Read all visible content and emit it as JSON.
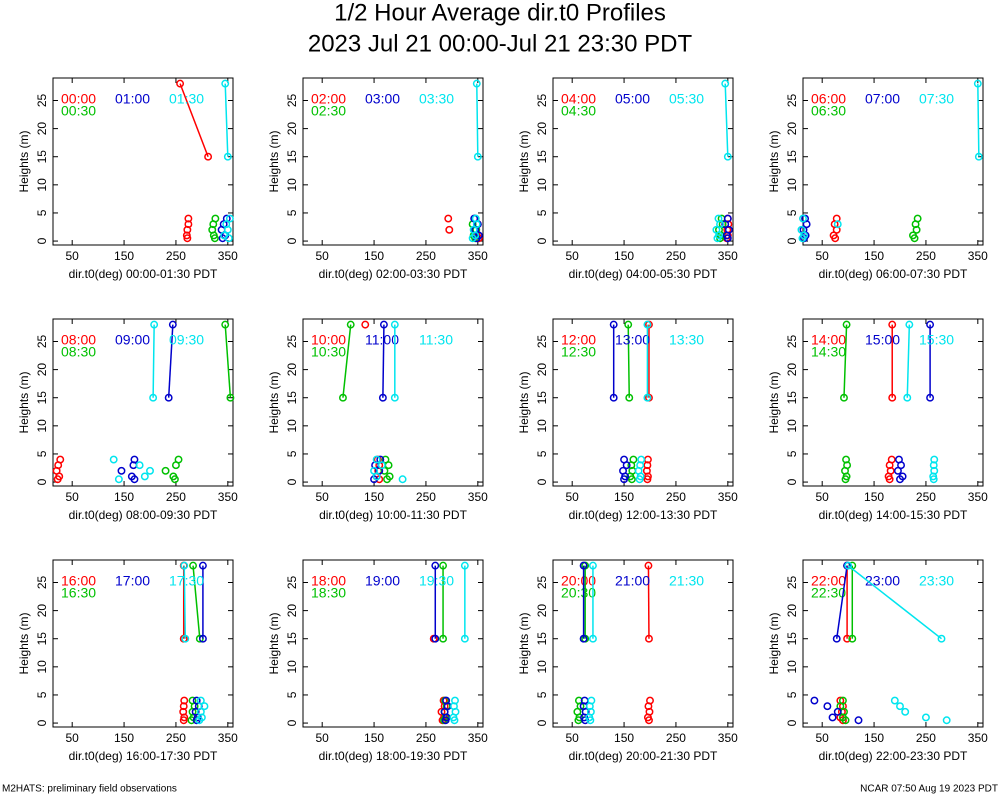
{
  "title": "1/2 Hour Average dir.t0 Profiles",
  "subtitle": "2023 Jul 21 00:00-Jul 21 23:30 PDT",
  "footer_left": "M2HATS: preliminary field observations",
  "footer_right": "NCAR 07:50 Aug 19 2023 PDT",
  "chart_data": [
    {
      "type": "scatter",
      "xlabel": "dir.t0(deg) 00:00-01:30 PDT",
      "ylabel": "Heights (m)",
      "xlim": [
        13,
        360
      ],
      "ylim": [
        -0.7,
        29
      ],
      "xticks": [
        50,
        150,
        250,
        350
      ],
      "yticks": [
        0,
        5,
        10,
        15,
        20,
        25
      ],
      "y": [
        0.5,
        1,
        2,
        3,
        4,
        15,
        28
      ],
      "series": [
        {
          "name": "00:00",
          "color": "#ff0000",
          "x": [
            272,
            271,
            272,
            274,
            274,
            312,
            258
          ]
        },
        {
          "name": "00:30",
          "color": "#00c000",
          "x": [
            325,
            323,
            320,
            322,
            326,
            null,
            null
          ]
        },
        {
          "name": "01:00",
          "color": "#0000cc",
          "x": [
            340,
            345,
            338,
            342,
            348,
            null,
            null
          ]
        },
        {
          "name": "01:30",
          "color": "#00e5ee",
          "x": [
            352,
            343,
            350,
            347,
            354,
            350,
            345
          ]
        }
      ]
    },
    {
      "type": "scatter",
      "xlabel": "dir.t0(deg) 02:00-03:30 PDT",
      "ylabel": "Heights (m)",
      "xlim": [
        13,
        360
      ],
      "ylim": [
        -0.7,
        29
      ],
      "xticks": [
        50,
        150,
        250,
        350
      ],
      "yticks": [
        0,
        5,
        10,
        15,
        20,
        25
      ],
      "y": [
        0.5,
        1,
        2,
        3,
        4,
        15,
        28
      ],
      "series": [
        {
          "name": "02:00",
          "color": "#ff0000",
          "x": [
            352,
            348,
            295,
            350,
            293,
            null,
            null
          ]
        },
        {
          "name": "02:30",
          "color": "#00c000",
          "x": [
            345,
            342,
            347,
            340,
            345,
            null,
            null
          ]
        },
        {
          "name": "03:00",
          "color": "#0000cc",
          "x": [
            348,
            352,
            345,
            350,
            343,
            null,
            null
          ]
        },
        {
          "name": "03:30",
          "color": "#00e5ee",
          "x": [
            340,
            345,
            342,
            348,
            346,
            350,
            348
          ]
        }
      ]
    },
    {
      "type": "scatter",
      "xlabel": "dir.t0(deg) 04:00-05:30 PDT",
      "ylabel": "Heights (m)",
      "xlim": [
        13,
        360
      ],
      "ylim": [
        -0.7,
        29
      ],
      "xticks": [
        50,
        150,
        250,
        350
      ],
      "yticks": [
        0,
        5,
        10,
        15,
        20,
        25
      ],
      "y": [
        0.5,
        1,
        2,
        3,
        4,
        15,
        28
      ],
      "series": [
        {
          "name": "04:00",
          "color": "#ff0000",
          "x": [
            348,
            350,
            349,
            351,
            350,
            null,
            null
          ]
        },
        {
          "name": "04:30",
          "color": "#00c000",
          "x": [
            335,
            337,
            333,
            340,
            338,
            null,
            null
          ]
        },
        {
          "name": "05:00",
          "color": "#0000cc",
          "x": [
            350,
            348,
            352,
            345,
            350,
            null,
            null
          ]
        },
        {
          "name": "05:30",
          "color": "#00e5ee",
          "x": [
            330,
            333,
            328,
            335,
            332,
            350,
            345
          ]
        }
      ]
    },
    {
      "type": "scatter",
      "xlabel": "dir.t0(deg) 06:00-07:30 PDT",
      "ylabel": "Heights (m)",
      "xlim": [
        13,
        360
      ],
      "ylim": [
        -0.7,
        29
      ],
      "xticks": [
        50,
        150,
        250,
        350
      ],
      "yticks": [
        0,
        5,
        10,
        15,
        20,
        25
      ],
      "y": [
        0.5,
        1,
        2,
        3,
        4,
        15,
        28
      ],
      "series": [
        {
          "name": "06:00",
          "color": "#ff0000",
          "x": [
            75,
            72,
            78,
            74,
            78,
            null,
            null
          ]
        },
        {
          "name": "06:30",
          "color": "#00c000",
          "x": [
            228,
            225,
            232,
            230,
            234,
            null,
            null
          ]
        },
        {
          "name": "07:00",
          "color": "#0000cc",
          "x": [
            15,
            18,
            14,
            20,
            17,
            null,
            null
          ]
        },
        {
          "name": "07:30",
          "color": "#00e5ee",
          "x": [
            12,
            15,
            10,
            80,
            13,
            352,
            350
          ]
        }
      ]
    },
    {
      "type": "scatter",
      "xlabel": "dir.t0(deg) 08:00-09:30 PDT",
      "ylabel": "Heights (m)",
      "xlim": [
        13,
        360
      ],
      "ylim": [
        -0.7,
        29
      ],
      "xticks": [
        50,
        150,
        250,
        350
      ],
      "yticks": [
        0,
        5,
        10,
        15,
        20,
        25
      ],
      "y": [
        0.5,
        1,
        2,
        3,
        4,
        15,
        28
      ],
      "series": [
        {
          "name": "08:00",
          "color": "#ff0000",
          "x": [
            22,
            25,
            20,
            23,
            27,
            null,
            null
          ]
        },
        {
          "name": "08:30",
          "color": "#00c000",
          "x": [
            248,
            245,
            230,
            250,
            255,
            355,
            345
          ]
        },
        {
          "name": "09:00",
          "color": "#0000cc",
          "x": [
            170,
            165,
            145,
            168,
            170,
            236,
            244
          ]
        },
        {
          "name": "09:30",
          "color": "#00e5ee",
          "x": [
            140,
            190,
            200,
            180,
            130,
            206,
            208
          ]
        }
      ]
    },
    {
      "type": "scatter",
      "xlabel": "dir.t0(deg) 10:00-11:30 PDT",
      "ylabel": "Heights (m)",
      "xlim": [
        13,
        360
      ],
      "ylim": [
        -0.7,
        29
      ],
      "xticks": [
        50,
        150,
        250,
        350
      ],
      "yticks": [
        0,
        5,
        10,
        15,
        20,
        25
      ],
      "y": [
        0.5,
        1,
        2,
        3,
        4,
        15,
        28
      ],
      "series": [
        {
          "name": "10:00",
          "color": "#ff0000",
          "x": [
            160,
            155,
            158,
            160,
            157,
            null,
            133
          ]
        },
        {
          "name": "10:30",
          "color": "#00c000",
          "x": [
            175,
            180,
            170,
            178,
            172,
            90,
            105
          ]
        },
        {
          "name": "11:00",
          "color": "#0000cc",
          "x": [
            150,
            155,
            160,
            152,
            162,
            167,
            169
          ]
        },
        {
          "name": "11:30",
          "color": "#00e5ee",
          "x": [
            205,
            155,
            150,
            165,
            155,
            190,
            190
          ]
        }
      ]
    },
    {
      "type": "scatter",
      "xlabel": "dir.t0(deg) 12:00-13:30 PDT",
      "ylabel": "Heights (m)",
      "xlim": [
        13,
        360
      ],
      "ylim": [
        -0.7,
        29
      ],
      "xticks": [
        50,
        150,
        250,
        350
      ],
      "yticks": [
        0,
        5,
        10,
        15,
        20,
        25
      ],
      "y": [
        0.5,
        1,
        2,
        3,
        4,
        15,
        28
      ],
      "series": [
        {
          "name": "12:00",
          "color": "#ff0000",
          "x": [
            195,
            196,
            194,
            195,
            196,
            198,
            198
          ]
        },
        {
          "name": "12:30",
          "color": "#00c000",
          "x": [
            165,
            162,
            166,
            164,
            168,
            160,
            158
          ]
        },
        {
          "name": "13:00",
          "color": "#0000cc",
          "x": [
            150,
            152,
            148,
            155,
            150,
            130,
            130
          ]
        },
        {
          "name": "13:30",
          "color": "#00e5ee",
          "x": [
            180,
            182,
            178,
            181,
            183,
            195,
            195
          ]
        }
      ]
    },
    {
      "type": "scatter",
      "xlabel": "dir.t0(deg) 14:00-15:30 PDT",
      "ylabel": "Heights (m)",
      "xlim": [
        13,
        360
      ],
      "ylim": [
        -0.7,
        29
      ],
      "xticks": [
        50,
        150,
        250,
        350
      ],
      "yticks": [
        0,
        5,
        10,
        15,
        20,
        25
      ],
      "y": [
        0.5,
        1,
        2,
        3,
        4,
        15,
        28
      ],
      "series": [
        {
          "name": "14:00",
          "color": "#ff0000",
          "x": [
            180,
            178,
            182,
            180,
            184,
            185,
            185
          ]
        },
        {
          "name": "14:30",
          "color": "#00c000",
          "x": [
            95,
            97,
            94,
            98,
            96,
            92,
            97
          ]
        },
        {
          "name": "15:00",
          "color": "#0000cc",
          "x": [
            200,
            205,
            196,
            202,
            198,
            258,
            258
          ]
        },
        {
          "name": "15:30",
          "color": "#00e5ee",
          "x": [
            265,
            264,
            266,
            265,
            266,
            214,
            218
          ]
        }
      ]
    },
    {
      "type": "scatter",
      "xlabel": "dir.t0(deg) 16:00-17:30 PDT",
      "ylabel": "Heights (m)",
      "xlim": [
        13,
        360
      ],
      "ylim": [
        -0.7,
        29
      ],
      "xticks": [
        50,
        150,
        250,
        350
      ],
      "yticks": [
        0,
        5,
        10,
        15,
        20,
        25
      ],
      "y": [
        0.5,
        1,
        2,
        3,
        4,
        15,
        28
      ],
      "series": [
        {
          "name": "16:00",
          "color": "#ff0000",
          "x": [
            265,
            266,
            264,
            265,
            266,
            265,
            265
          ]
        },
        {
          "name": "16:30",
          "color": "#00c000",
          "x": [
            280,
            284,
            282,
            286,
            282,
            296,
            283
          ]
        },
        {
          "name": "17:00",
          "color": "#0000cc",
          "x": [
            290,
            292,
            288,
            294,
            290,
            302,
            302
          ]
        },
        {
          "name": "17:30",
          "color": "#00e5ee",
          "x": [
            295,
            300,
            298,
            305,
            298,
            268,
            266
          ]
        }
      ]
    },
    {
      "type": "scatter",
      "xlabel": "dir.t0(deg) 18:00-19:30 PDT",
      "ylabel": "Heights (m)",
      "xlim": [
        13,
        360
      ],
      "ylim": [
        -0.7,
        29
      ],
      "xticks": [
        50,
        150,
        250,
        350
      ],
      "yticks": [
        0,
        5,
        10,
        15,
        20,
        25
      ],
      "y": [
        0.5,
        1,
        2,
        3,
        4,
        15,
        28
      ],
      "series": [
        {
          "name": "18:00",
          "color": "#ff0000",
          "x": [
            282,
            285,
            280,
            286,
            284,
            265,
            null
          ]
        },
        {
          "name": "18:30",
          "color": "#00c000",
          "x": [
            285,
            288,
            286,
            290,
            287,
            283,
            283
          ]
        },
        {
          "name": "19:00",
          "color": "#0000cc",
          "x": [
            288,
            290,
            286,
            292,
            289,
            268,
            268
          ]
        },
        {
          "name": "19:30",
          "color": "#00e5ee",
          "x": [
            305,
            303,
            307,
            304,
            306,
            325,
            325
          ]
        }
      ]
    },
    {
      "type": "scatter",
      "xlabel": "dir.t0(deg) 20:00-21:30 PDT",
      "ylabel": "Heights (m)",
      "xlim": [
        13,
        360
      ],
      "ylim": [
        -0.7,
        29
      ],
      "xticks": [
        50,
        150,
        250,
        350
      ],
      "yticks": [
        0,
        5,
        10,
        15,
        20,
        25
      ],
      "y": [
        0.5,
        1,
        2,
        3,
        4,
        15,
        28
      ],
      "series": [
        {
          "name": "20:00",
          "color": "#ff0000",
          "x": [
            198,
            196,
            199,
            197,
            200,
            198,
            197
          ]
        },
        {
          "name": "20:30",
          "color": "#00c000",
          "x": [
            62,
            64,
            60,
            66,
            63,
            75,
            75
          ]
        },
        {
          "name": "21:00",
          "color": "#0000cc",
          "x": [
            75,
            73,
            76,
            72,
            74,
            72,
            72
          ]
        },
        {
          "name": "21:30",
          "color": "#00e5ee",
          "x": [
            85,
            83,
            86,
            84,
            87,
            90,
            90
          ]
        }
      ]
    },
    {
      "type": "scatter",
      "xlabel": "dir.t0(deg) 22:00-23:30 PDT",
      "ylabel": "Heights (m)",
      "xlim": [
        13,
        360
      ],
      "ylim": [
        -0.7,
        29
      ],
      "xticks": [
        50,
        150,
        250,
        350
      ],
      "yticks": [
        0,
        5,
        10,
        15,
        20,
        25
      ],
      "y": [
        0.5,
        1,
        2,
        3,
        4,
        15,
        28
      ],
      "series": [
        {
          "name": "22:00",
          "color": "#ff0000",
          "x": [
            90,
            85,
            88,
            90,
            85,
            98,
            98
          ]
        },
        {
          "name": "22:30",
          "color": "#00c000",
          "x": [
            95,
            90,
            92,
            85,
            90,
            108,
            108
          ]
        },
        {
          "name": "23:00",
          "color": "#0000cc",
          "x": [
            120,
            70,
            80,
            60,
            35,
            78,
            98
          ]
        },
        {
          "name": "23:30",
          "color": "#00e5ee",
          "x": [
            290,
            250,
            210,
            200,
            190,
            280,
            100
          ]
        }
      ]
    }
  ]
}
